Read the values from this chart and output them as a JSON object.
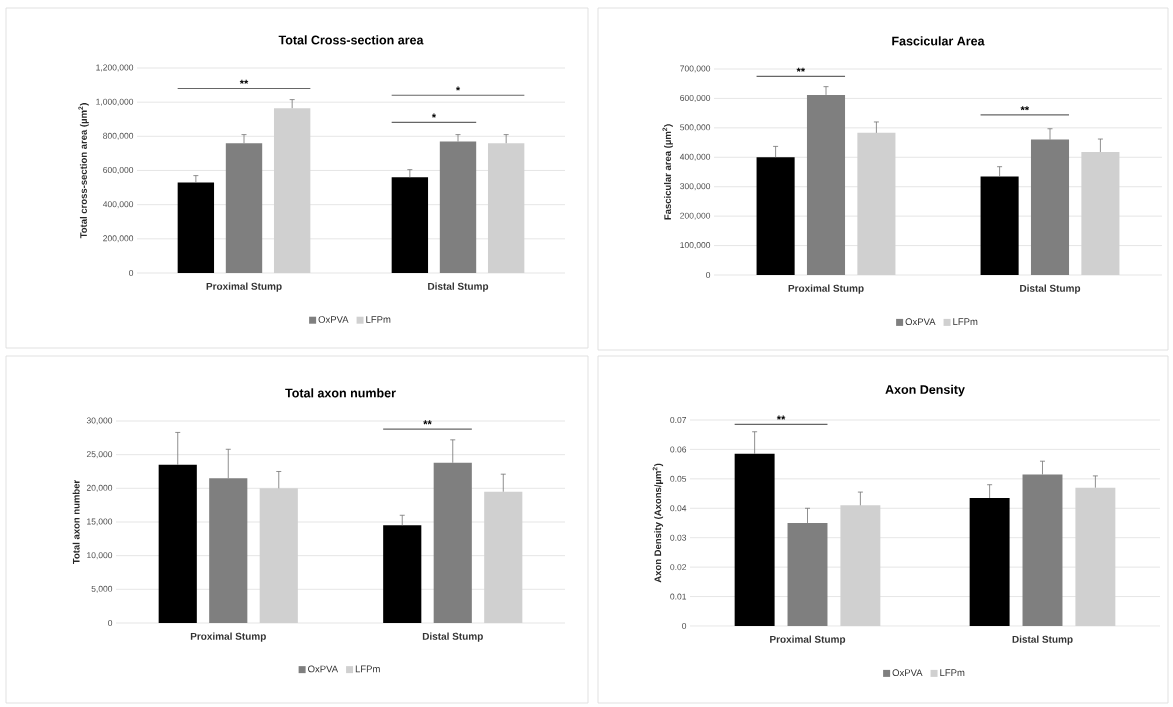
{
  "chart_data": [
    {
      "type": "bar",
      "title": "Total Cross-section area",
      "ylabel": "Total cross-section area (µm$^{2}$)",
      "categories": [
        "Proximal Stump",
        "Distal Stump"
      ],
      "series": [
        {
          "color": "#000000",
          "values": [
            530000,
            560000
          ],
          "errors": [
            [
              530000,
              570000
            ],
            [
              560000,
              605000
            ]
          ]
        },
        {
          "name": "OxPVA",
          "color": "#7f7f7f",
          "values": [
            760000,
            770000
          ],
          "errors": [
            [
              760000,
              810000
            ],
            [
              770000,
              810000
            ]
          ]
        },
        {
          "name": "LFPm",
          "color": "#d0d0d0",
          "values": [
            965000,
            760000
          ],
          "errors": [
            [
              965000,
              1015000
            ],
            [
              760000,
              810000
            ]
          ]
        }
      ],
      "ylim": [
        0,
        1200000
      ],
      "yticks": [
        0,
        {
          "value": 200000,
          "label": "200,000"
        },
        {
          "value": 400000,
          "label": "400,000"
        },
        {
          "value": 600000,
          "label": "600,000"
        },
        {
          "value": 800000,
          "label": "800,000"
        },
        {
          "value": 1000000,
          "label": "1,000,000"
        },
        {
          "value": 1200000,
          "label": "1,200,000"
        }
      ],
      "grid": "y",
      "legend": "bottom",
      "annotations": [
        "**",
        "*",
        "*"
      ]
    },
    {
      "type": "bar",
      "title": "Fascicular Area",
      "ylabel": "Fascicular area (µm$^{2}$)",
      "categories": [
        "Proximal Stump",
        "Distal Stump"
      ],
      "series": [
        {
          "color": "#000000",
          "values": [
            400000,
            335000
          ],
          "errors": [
            [
              400000,
              437000
            ],
            [
              335000,
              368000
            ]
          ]
        },
        {
          "name": "OxPVA",
          "color": "#7f7f7f",
          "values": [
            612000,
            460000
          ],
          "errors": [
            [
              612000,
              640000
            ],
            [
              460000,
              497000
            ]
          ]
        },
        {
          "name": "LFPm",
          "color": "#d0d0d0",
          "values": [
            483000,
            418000
          ],
          "errors": [
            [
              483000,
              520000
            ],
            [
              418000,
              462000
            ]
          ]
        }
      ],
      "ylim": [
        0,
        700000
      ],
      "yticks": [
        0,
        {
          "value": 100000,
          "label": "100,000"
        },
        {
          "value": 200000,
          "label": "200,000"
        },
        {
          "value": 300000,
          "label": "300,000"
        },
        {
          "value": 400000,
          "label": "400,000"
        },
        {
          "value": 500000,
          "label": "500,000"
        },
        {
          "value": 600000,
          "label": "600,000"
        },
        {
          "value": 700000,
          "label": "700,000"
        }
      ],
      "grid": "y",
      "legend": "bottom",
      "annotations": [
        "**",
        "**"
      ]
    },
    {
      "type": "bar",
      "title": "Total axon number",
      "ylabel": "Total axon number",
      "categories": [
        "Proximal Stump",
        "Distal Stump"
      ],
      "series": [
        {
          "color": "#000000",
          "values": [
            23500,
            14500
          ],
          "errors": [
            [
              23500,
              28300
            ],
            [
              14500,
              16000
            ]
          ]
        },
        {
          "name": "OxPVA",
          "color": "#7f7f7f",
          "values": [
            21500,
            23800
          ],
          "errors": [
            [
              21500,
              25800
            ],
            [
              23800,
              27200
            ]
          ]
        },
        {
          "name": "LFPm",
          "color": "#d0d0d0",
          "values": [
            20000,
            19500
          ],
          "errors": [
            [
              20000,
              22500
            ],
            [
              19500,
              22100
            ]
          ]
        }
      ],
      "ylim": [
        0,
        30000
      ],
      "yticks": [
        0,
        {
          "value": 5000,
          "label": "5,000"
        },
        {
          "value": 10000,
          "label": "10,000"
        },
        {
          "value": 15000,
          "label": "15,000"
        },
        {
          "value": 20000,
          "label": "20,000"
        },
        {
          "value": 25000,
          "label": "25,000"
        },
        {
          "value": 30000,
          "label": "30,000"
        }
      ],
      "grid": "y",
      "legend": "bottom",
      "annotations": [
        "**"
      ]
    },
    {
      "type": "bar",
      "title": "Axon Density",
      "ylabel": "Axon Density (Axons/µm$^{2}$)",
      "categories": [
        "Proximal Stump",
        "Distal Stump"
      ],
      "series": [
        {
          "color": "#000000",
          "values": [
            0.0585,
            0.0435
          ],
          "errors": [
            [
              0.0585,
              0.066
            ],
            [
              0.0435,
              0.048
            ]
          ]
        },
        {
          "name": "OxPVA",
          "color": "#7f7f7f",
          "values": [
            0.035,
            0.0515
          ],
          "errors": [
            [
              0.035,
              0.04
            ],
            [
              0.0515,
              0.056
            ]
          ]
        },
        {
          "name": "LFPm",
          "color": "#d0d0d0",
          "values": [
            0.041,
            0.047
          ],
          "errors": [
            [
              0.041,
              0.0455
            ],
            [
              0.047,
              0.051
            ]
          ]
        }
      ],
      "ylim": [
        0,
        0.07
      ],
      "yticks": [
        0,
        0.01,
        0.02,
        0.03,
        0.04,
        0.05,
        0.06,
        0.07
      ],
      "grid": "y",
      "legend": "bottom",
      "annotations": [
        "**"
      ]
    }
  ]
}
